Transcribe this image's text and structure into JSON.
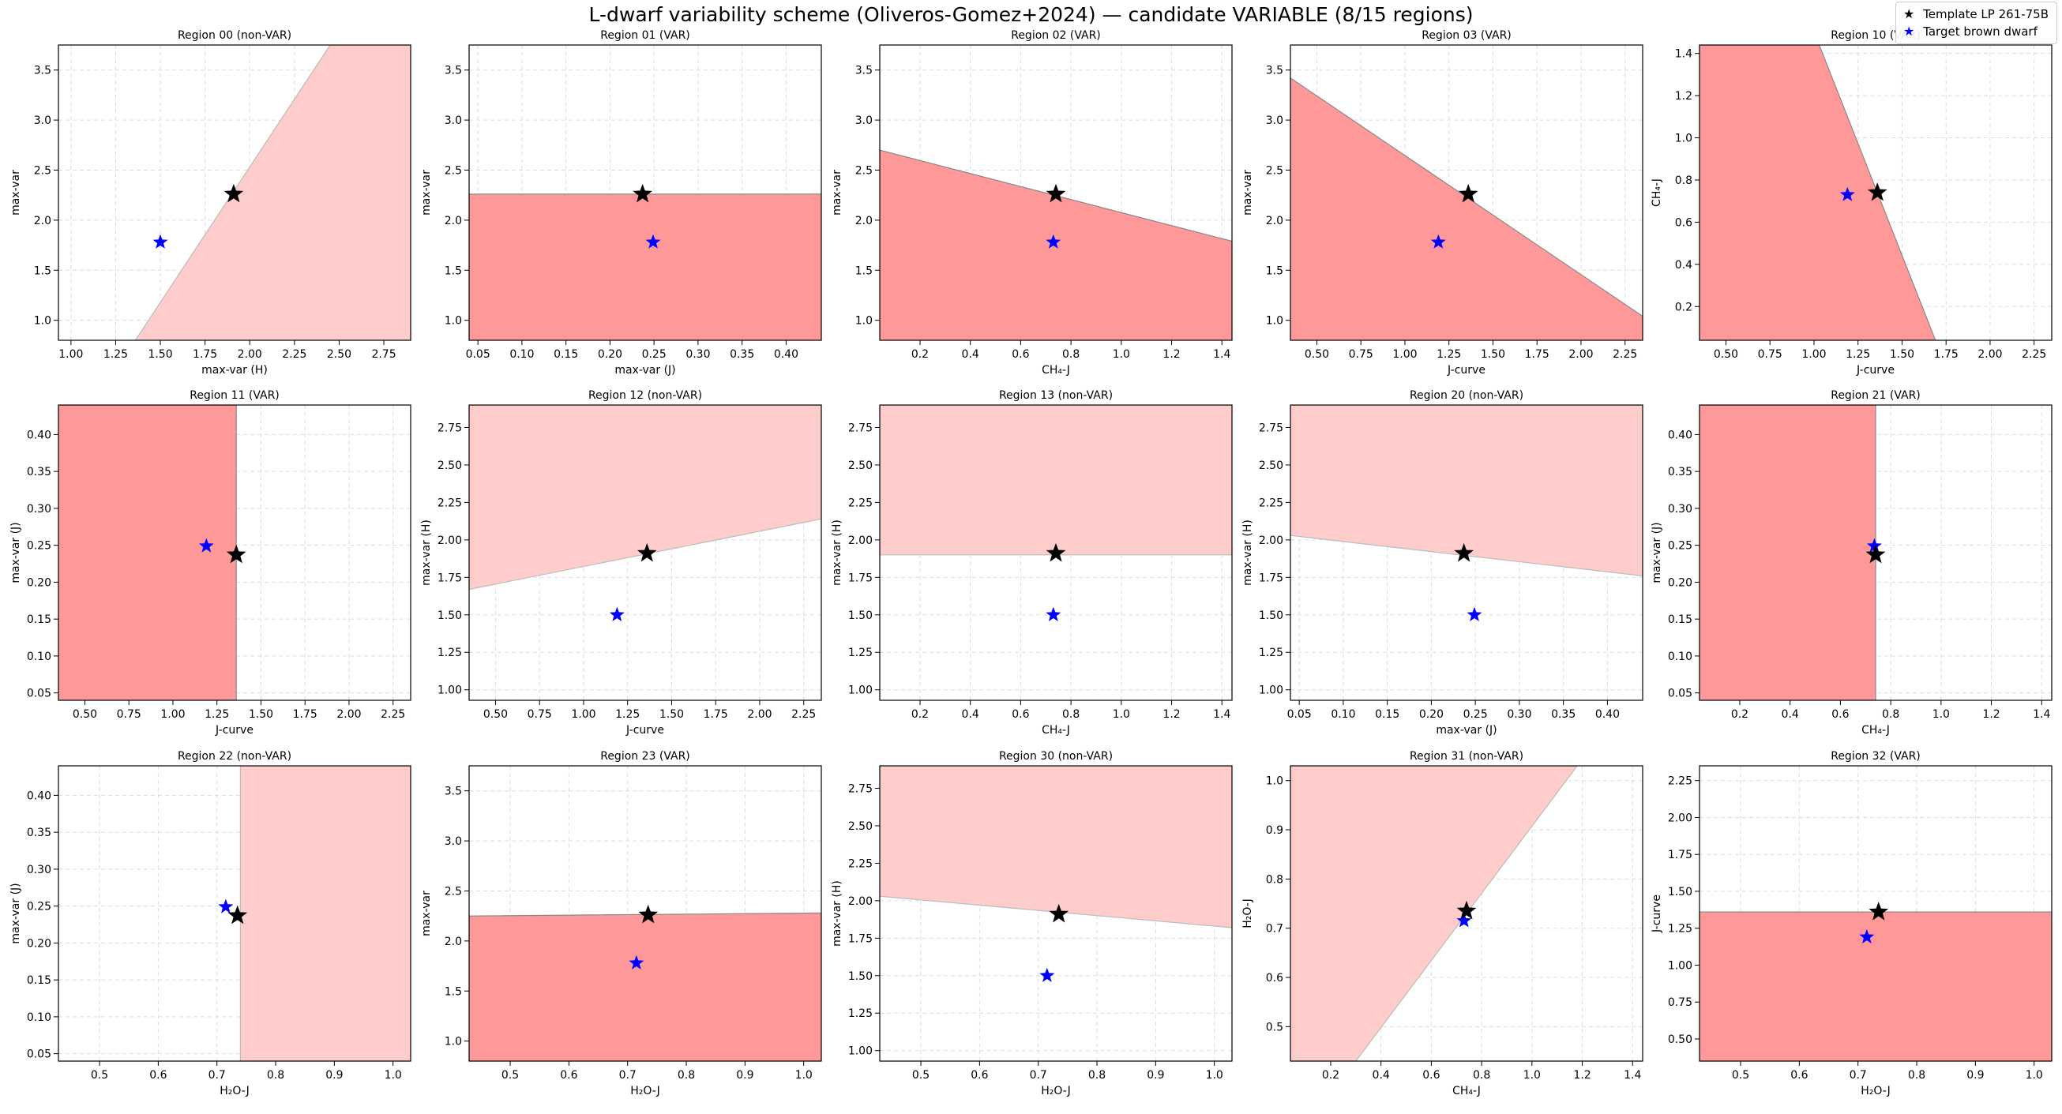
{
  "figure": {
    "title": "L-dwarf variability scheme (Oliveros-Gomez+2024) — candidate VARIABLE (8/15 regions)"
  },
  "legend": {
    "items": [
      {
        "label": "Template LP 261-75B",
        "color": "#000000",
        "icon": "star-icon"
      },
      {
        "label": "Target brown dwarf",
        "color": "#0000ff",
        "icon": "star-icon"
      }
    ]
  },
  "colors": {
    "var_fill": "#ff9999",
    "nonvar_fill": "#ffcccc",
    "template": "#000000",
    "target": "#0000ff",
    "grid": "#dddddd"
  },
  "chart_data": [
    {
      "type": "scatter",
      "title": "Region 00 (non-VAR)",
      "var": false,
      "xlabel": "max-var (H)",
      "ylabel": "max-var",
      "xlim": [
        0.93,
        2.9
      ],
      "ylim": [
        0.8,
        3.75
      ],
      "xticks": [
        "1.00",
        "1.25",
        "1.50",
        "1.75",
        "2.00",
        "2.25",
        "2.50",
        "2.75"
      ],
      "yticks": [
        "1.0",
        "1.5",
        "2.0",
        "2.5",
        "3.0",
        "3.5"
      ],
      "region": [
        [
          1.36,
          0.8
        ],
        [
          2.45,
          3.75
        ],
        [
          2.9,
          3.75
        ],
        [
          2.9,
          0.8
        ]
      ],
      "template": [
        1.91,
        2.26
      ],
      "target": [
        1.5,
        1.78
      ]
    },
    {
      "type": "scatter",
      "title": "Region 01 (VAR)",
      "var": true,
      "xlabel": "max-var (J)",
      "ylabel": "max-var",
      "xlim": [
        0.04,
        0.44
      ],
      "ylim": [
        0.8,
        3.75
      ],
      "xticks": [
        "0.05",
        "0.10",
        "0.15",
        "0.20",
        "0.25",
        "0.30",
        "0.35",
        "0.40"
      ],
      "yticks": [
        "1.0",
        "1.5",
        "2.0",
        "2.5",
        "3.0",
        "3.5"
      ],
      "region": [
        [
          0.04,
          0.8
        ],
        [
          0.04,
          2.26
        ],
        [
          0.44,
          2.26
        ],
        [
          0.44,
          0.8
        ]
      ],
      "template": [
        0.237,
        2.26
      ],
      "target": [
        0.249,
        1.78
      ]
    },
    {
      "type": "scatter",
      "title": "Region 02 (VAR)",
      "var": true,
      "xlabel": "CH₄-J",
      "ylabel": "max-var",
      "xlim": [
        0.04,
        1.44
      ],
      "ylim": [
        0.8,
        3.75
      ],
      "xticks": [
        "0.2",
        "0.4",
        "0.6",
        "0.8",
        "1.0",
        "1.2",
        "1.4"
      ],
      "yticks": [
        "1.0",
        "1.5",
        "2.0",
        "2.5",
        "3.0",
        "3.5"
      ],
      "region": [
        [
          0.04,
          0.8
        ],
        [
          0.04,
          2.7
        ],
        [
          1.44,
          1.79
        ],
        [
          1.44,
          0.8
        ]
      ],
      "template": [
        0.74,
        2.26
      ],
      "target": [
        0.73,
        1.78
      ]
    },
    {
      "type": "scatter",
      "title": "Region 03 (VAR)",
      "var": true,
      "xlabel": "J-curve",
      "ylabel": "max-var",
      "xlim": [
        0.35,
        2.35
      ],
      "ylim": [
        0.8,
        3.75
      ],
      "xticks": [
        "0.50",
        "0.75",
        "1.00",
        "1.25",
        "1.50",
        "1.75",
        "2.00",
        "2.25"
      ],
      "yticks": [
        "1.0",
        "1.5",
        "2.0",
        "2.5",
        "3.0",
        "3.5"
      ],
      "region": [
        [
          0.35,
          0.8
        ],
        [
          0.35,
          3.42
        ],
        [
          2.35,
          1.04
        ],
        [
          2.35,
          0.8
        ]
      ],
      "template": [
        1.36,
        2.26
      ],
      "target": [
        1.19,
        1.78
      ]
    },
    {
      "type": "scatter",
      "title": "Region 10 (VAR)",
      "var": true,
      "xlabel": "J-curve",
      "ylabel": "CH₄-J",
      "xlim": [
        0.35,
        2.35
      ],
      "ylim": [
        0.04,
        1.44
      ],
      "xticks": [
        "0.50",
        "0.75",
        "1.00",
        "1.25",
        "1.50",
        "1.75",
        "2.00",
        "2.25"
      ],
      "yticks": [
        "0.2",
        "0.4",
        "0.6",
        "0.8",
        "1.0",
        "1.2",
        "1.4"
      ],
      "region": [
        [
          0.35,
          0.04
        ],
        [
          0.35,
          1.44
        ],
        [
          1.03,
          1.44
        ],
        [
          1.69,
          0.04
        ]
      ],
      "template": [
        1.36,
        0.74
      ],
      "target": [
        1.19,
        0.73
      ]
    },
    {
      "type": "scatter",
      "title": "Region 11 (VAR)",
      "var": true,
      "xlabel": "J-curve",
      "ylabel": "max-var (J)",
      "xlim": [
        0.35,
        2.35
      ],
      "ylim": [
        0.04,
        0.44
      ],
      "xticks": [
        "0.50",
        "0.75",
        "1.00",
        "1.25",
        "1.50",
        "1.75",
        "2.00",
        "2.25"
      ],
      "yticks": [
        "0.05",
        "0.10",
        "0.15",
        "0.20",
        "0.25",
        "0.30",
        "0.35",
        "0.40"
      ],
      "region": [
        [
          0.35,
          0.04
        ],
        [
          0.35,
          0.44
        ],
        [
          1.36,
          0.44
        ],
        [
          1.36,
          0.04
        ]
      ],
      "template": [
        1.36,
        0.237
      ],
      "target": [
        1.19,
        0.249
      ]
    },
    {
      "type": "scatter",
      "title": "Region 12 (non-VAR)",
      "var": false,
      "xlabel": "J-curve",
      "ylabel": "max-var (H)",
      "xlim": [
        0.35,
        2.35
      ],
      "ylim": [
        0.93,
        2.9
      ],
      "xticks": [
        "0.50",
        "0.75",
        "1.00",
        "1.25",
        "1.50",
        "1.75",
        "2.00",
        "2.25"
      ],
      "yticks": [
        "1.00",
        "1.25",
        "1.50",
        "1.75",
        "2.00",
        "2.25",
        "2.50",
        "2.75"
      ],
      "region": [
        [
          0.35,
          1.67
        ],
        [
          0.35,
          2.9
        ],
        [
          2.35,
          2.9
        ],
        [
          2.35,
          2.14
        ]
      ],
      "template": [
        1.36,
        1.91
      ],
      "target": [
        1.19,
        1.5
      ]
    },
    {
      "type": "scatter",
      "title": "Region 13 (non-VAR)",
      "var": false,
      "xlabel": "CH₄-J",
      "ylabel": "max-var (H)",
      "xlim": [
        0.04,
        1.44
      ],
      "ylim": [
        0.93,
        2.9
      ],
      "xticks": [
        "0.2",
        "0.4",
        "0.6",
        "0.8",
        "1.0",
        "1.2",
        "1.4"
      ],
      "yticks": [
        "1.00",
        "1.25",
        "1.50",
        "1.75",
        "2.00",
        "2.25",
        "2.50",
        "2.75"
      ],
      "region": [
        [
          0.04,
          1.9
        ],
        [
          0.04,
          2.9
        ],
        [
          1.44,
          2.9
        ],
        [
          1.44,
          1.9
        ]
      ],
      "template": [
        0.74,
        1.91
      ],
      "target": [
        0.73,
        1.5
      ]
    },
    {
      "type": "scatter",
      "title": "Region 20 (non-VAR)",
      "var": false,
      "xlabel": "max-var (J)",
      "ylabel": "max-var (H)",
      "xlim": [
        0.04,
        0.44
      ],
      "ylim": [
        0.93,
        2.9
      ],
      "xticks": [
        "0.05",
        "0.10",
        "0.15",
        "0.20",
        "0.25",
        "0.30",
        "0.35",
        "0.40"
      ],
      "yticks": [
        "1.00",
        "1.25",
        "1.50",
        "1.75",
        "2.00",
        "2.25",
        "2.50",
        "2.75"
      ],
      "region": [
        [
          0.04,
          2.03
        ],
        [
          0.04,
          2.9
        ],
        [
          0.44,
          2.9
        ],
        [
          0.44,
          1.76
        ]
      ],
      "template": [
        0.237,
        1.91
      ],
      "target": [
        0.249,
        1.5
      ]
    },
    {
      "type": "scatter",
      "title": "Region 21 (VAR)",
      "var": true,
      "xlabel": "CH₄-J",
      "ylabel": "max-var (J)",
      "xlim": [
        0.04,
        1.44
      ],
      "ylim": [
        0.04,
        0.44
      ],
      "xticks": [
        "0.2",
        "0.4",
        "0.6",
        "0.8",
        "1.0",
        "1.2",
        "1.4"
      ],
      "yticks": [
        "0.05",
        "0.10",
        "0.15",
        "0.20",
        "0.25",
        "0.30",
        "0.35",
        "0.40"
      ],
      "region": [
        [
          0.04,
          0.04
        ],
        [
          0.04,
          0.44
        ],
        [
          0.74,
          0.44
        ],
        [
          0.74,
          0.04
        ]
      ],
      "template": [
        0.74,
        0.237
      ],
      "target": [
        0.735,
        0.249
      ]
    },
    {
      "type": "scatter",
      "title": "Region 22 (non-VAR)",
      "var": false,
      "xlabel": "H₂O-J",
      "ylabel": "max-var (J)",
      "xlim": [
        0.43,
        1.03
      ],
      "ylim": [
        0.04,
        0.44
      ],
      "xticks": [
        "0.5",
        "0.6",
        "0.7",
        "0.8",
        "0.9",
        "1.0"
      ],
      "yticks": [
        "0.05",
        "0.10",
        "0.15",
        "0.20",
        "0.25",
        "0.30",
        "0.35",
        "0.40"
      ],
      "region": [
        [
          0.74,
          0.04
        ],
        [
          0.74,
          0.44
        ],
        [
          1.03,
          0.44
        ],
        [
          1.03,
          0.04
        ]
      ],
      "template": [
        0.735,
        0.237
      ],
      "target": [
        0.715,
        0.249
      ]
    },
    {
      "type": "scatter",
      "title": "Region 23 (VAR)",
      "var": true,
      "xlabel": "H₂O-J",
      "ylabel": "max-var",
      "xlim": [
        0.43,
        1.03
      ],
      "ylim": [
        0.8,
        3.75
      ],
      "xticks": [
        "0.5",
        "0.6",
        "0.7",
        "0.8",
        "0.9",
        "1.0"
      ],
      "yticks": [
        "1.0",
        "1.5",
        "2.0",
        "2.5",
        "3.0",
        "3.5"
      ],
      "region": [
        [
          0.43,
          0.8
        ],
        [
          0.43,
          2.25
        ],
        [
          1.03,
          2.28
        ],
        [
          1.03,
          0.8
        ]
      ],
      "template": [
        0.735,
        2.26
      ],
      "target": [
        0.715,
        1.78
      ]
    },
    {
      "type": "scatter",
      "title": "Region 30 (non-VAR)",
      "var": false,
      "xlabel": "H₂O-J",
      "ylabel": "max-var (H)",
      "xlim": [
        0.43,
        1.03
      ],
      "ylim": [
        0.93,
        2.9
      ],
      "xticks": [
        "0.5",
        "0.6",
        "0.7",
        "0.8",
        "0.9",
        "1.0"
      ],
      "yticks": [
        "1.00",
        "1.25",
        "1.50",
        "1.75",
        "2.00",
        "2.25",
        "2.50",
        "2.75"
      ],
      "region": [
        [
          0.43,
          2.03
        ],
        [
          0.43,
          2.9
        ],
        [
          1.03,
          2.9
        ],
        [
          1.03,
          1.82
        ]
      ],
      "template": [
        0.735,
        1.91
      ],
      "target": [
        0.715,
        1.5
      ]
    },
    {
      "type": "scatter",
      "title": "Region 31 (non-VAR)",
      "var": false,
      "xlabel": "CH₄-J",
      "ylabel": "H₂O-J",
      "xlim": [
        0.04,
        1.44
      ],
      "ylim": [
        0.43,
        1.03
      ],
      "xticks": [
        "0.2",
        "0.4",
        "0.6",
        "0.8",
        "1.0",
        "1.2",
        "1.4"
      ],
      "yticks": [
        "0.5",
        "0.6",
        "0.7",
        "0.8",
        "0.9",
        "1.0"
      ],
      "region": [
        [
          0.04,
          0.43
        ],
        [
          0.04,
          1.03
        ],
        [
          1.18,
          1.03
        ],
        [
          0.3,
          0.43
        ]
      ],
      "template": [
        0.74,
        0.735
      ],
      "target": [
        0.73,
        0.715
      ]
    },
    {
      "type": "scatter",
      "title": "Region 32 (VAR)",
      "var": true,
      "xlabel": "H₂O-J",
      "ylabel": "J-curve",
      "xlim": [
        0.43,
        1.03
      ],
      "ylim": [
        0.35,
        2.35
      ],
      "xticks": [
        "0.5",
        "0.6",
        "0.7",
        "0.8",
        "0.9",
        "1.0"
      ],
      "yticks": [
        "0.50",
        "0.75",
        "1.00",
        "1.25",
        "1.50",
        "1.75",
        "2.00",
        "2.25"
      ],
      "region": [
        [
          0.43,
          0.35
        ],
        [
          0.43,
          1.36
        ],
        [
          1.03,
          1.36
        ],
        [
          1.03,
          0.35
        ]
      ],
      "template": [
        0.735,
        1.36
      ],
      "target": [
        0.715,
        1.19
      ]
    }
  ]
}
